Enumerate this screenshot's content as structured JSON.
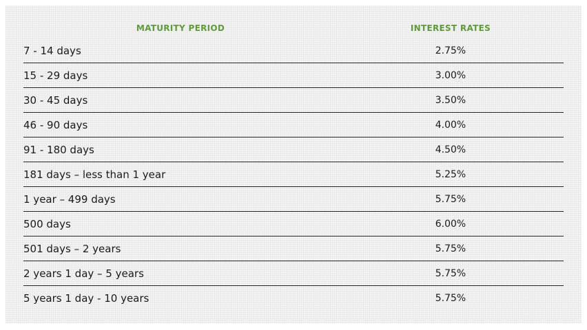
{
  "table": {
    "headers": {
      "period": "MATURITY PERIOD",
      "rate": "INTEREST RATES"
    },
    "header_color": "#5f9a3c",
    "rows": [
      {
        "period": "7 - 14 days",
        "rate": "2.75%"
      },
      {
        "period": "15 - 29 days",
        "rate": "3.00%"
      },
      {
        "period": "30 - 45 days",
        "rate": "3.50%"
      },
      {
        "period": "46 - 90 days",
        "rate": "4.00%"
      },
      {
        "period": "91 - 180 days",
        "rate": "4.50%"
      },
      {
        "period": "181 days – less than 1 year",
        "rate": "5.25%"
      },
      {
        "period": "1 year – 499 days",
        "rate": "5.75%"
      },
      {
        "period": "500 days",
        "rate": "6.00%"
      },
      {
        "period": "501 days – 2 years",
        "rate": "5.75%"
      },
      {
        "period": "2 years 1 day – 5 years",
        "rate": "5.75%"
      },
      {
        "period": "5 years 1 day - 10 years",
        "rate": "5.75%"
      }
    ]
  }
}
